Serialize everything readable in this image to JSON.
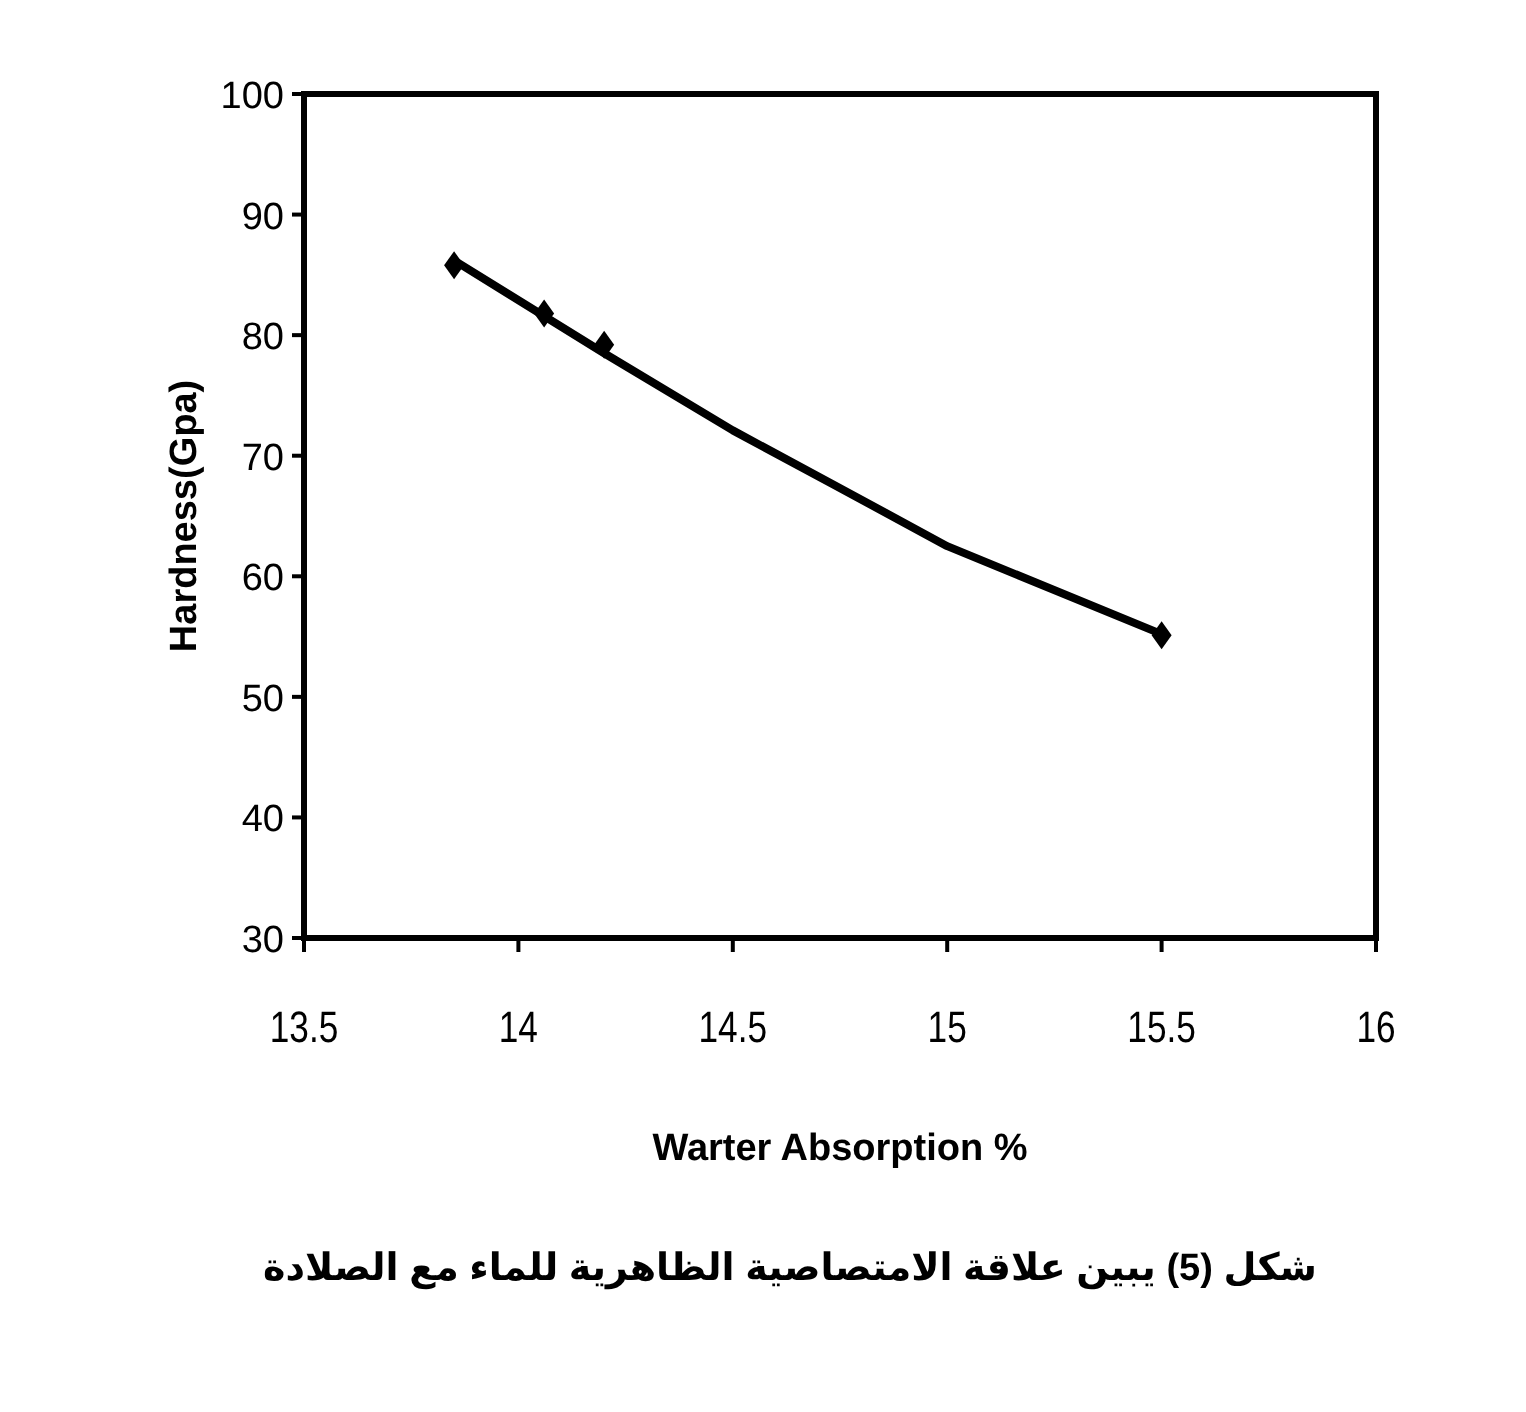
{
  "chart_data": {
    "type": "scatter",
    "xlabel": "Warter Absorption %",
    "ylabel": "Hardness(Gpa)",
    "xlim": [
      13.5,
      16
    ],
    "xticks": [
      13.5,
      14,
      14.5,
      15,
      15.5,
      16
    ],
    "ylim": [
      30,
      100
    ],
    "yticks": [
      30,
      40,
      50,
      60,
      70,
      80,
      90,
      100
    ],
    "grid": false,
    "marker": "diamond",
    "series": [
      {
        "type": "scatter",
        "color": "#000000",
        "x": [
          13.85,
          14.06,
          14.2,
          15.5
        ],
        "values": [
          85.8,
          81.8,
          79.2,
          55.1
        ]
      },
      {
        "type": "line",
        "color": "#000000",
        "line_style": "solid",
        "marker": "none",
        "x": [
          13.85,
          14.2,
          14.5,
          14.73,
          15.0,
          15.5
        ],
        "values": [
          86.2,
          78.5,
          72.1,
          67.7,
          62.5,
          55.2
        ]
      }
    ],
    "annotations": [
      "شكل (5)  يبين علاقة الامتصاصية الظاهرية للماء مع الصلادة"
    ]
  }
}
